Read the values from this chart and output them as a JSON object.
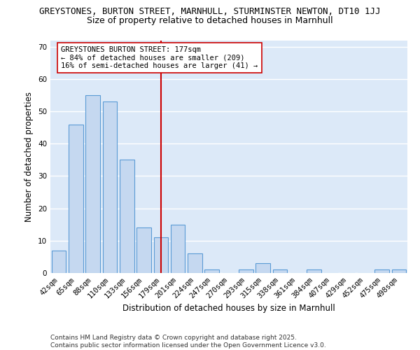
{
  "title": "GREYSTONES, BURTON STREET, MARNHULL, STURMINSTER NEWTON, DT10 1JJ",
  "subtitle": "Size of property relative to detached houses in Marnhull",
  "xlabel": "Distribution of detached houses by size in Marnhull",
  "ylabel": "Number of detached properties",
  "categories": [
    "42sqm",
    "65sqm",
    "88sqm",
    "110sqm",
    "133sqm",
    "156sqm",
    "179sqm",
    "201sqm",
    "224sqm",
    "247sqm",
    "270sqm",
    "293sqm",
    "315sqm",
    "338sqm",
    "361sqm",
    "384sqm",
    "407sqm",
    "429sqm",
    "452sqm",
    "475sqm",
    "498sqm"
  ],
  "values": [
    7,
    46,
    55,
    53,
    35,
    14,
    11,
    15,
    6,
    1,
    0,
    1,
    3,
    1,
    0,
    1,
    0,
    0,
    0,
    1,
    1
  ],
  "bar_color": "#c5d8f0",
  "bar_edge_color": "#5b9bd5",
  "vline_x_index": 6,
  "vline_color": "#cc0000",
  "annotation_line1": "GREYSTONES BURTON STREET: 177sqm",
  "annotation_line2": "← 84% of detached houses are smaller (209)",
  "annotation_line3": "16% of semi-detached houses are larger (41) →",
  "annotation_box_color": "white",
  "annotation_box_edge_color": "#cc0000",
  "annotation_fontsize": 7.5,
  "ylim": [
    0,
    72
  ],
  "yticks": [
    0,
    10,
    20,
    30,
    40,
    50,
    60,
    70
  ],
  "background_color": "#dce9f8",
  "grid_color": "white",
  "title_fontsize": 9.0,
  "subtitle_fontsize": 9.0,
  "xlabel_fontsize": 8.5,
  "ylabel_fontsize": 8.5,
  "tick_fontsize": 7.5,
  "footer_text": "Contains HM Land Registry data © Crown copyright and database right 2025.\nContains public sector information licensed under the Open Government Licence v3.0.",
  "footer_fontsize": 6.5
}
